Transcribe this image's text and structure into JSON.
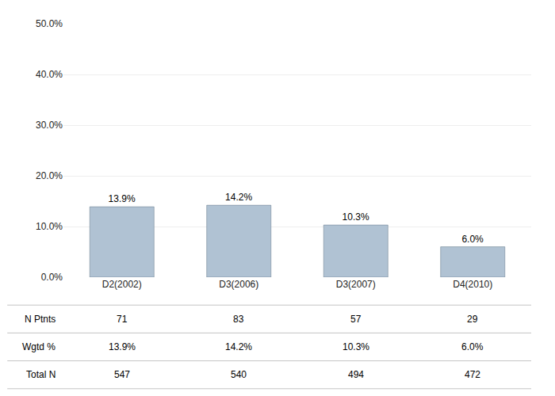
{
  "chart_data": [
    {
      "type": "bar",
      "categories": [
        "D2(2002)",
        "D3(2006)",
        "D3(2007)",
        "D4(2010)"
      ],
      "values": [
        13.9,
        14.2,
        10.3,
        6.0
      ],
      "value_labels": [
        "13.9%",
        "14.2%",
        "10.3%",
        "6.0%"
      ],
      "data_labels": true,
      "color": "#b0c2d3",
      "ylim": [
        0,
        50
      ],
      "yticks": [
        {
          "value": 0,
          "label": "0.0%"
        },
        {
          "value": 10,
          "label": "10.0%"
        },
        {
          "value": 20,
          "label": "20.0%"
        },
        {
          "value": 30,
          "label": "30.0%"
        },
        {
          "value": 40,
          "label": "40.0%"
        },
        {
          "value": 50,
          "label": "50.0%"
        }
      ],
      "grid": true
    },
    {
      "type": "table",
      "categories": [
        "D2(2002)",
        "D3(2006)",
        "D3(2007)",
        "D4(2010)"
      ],
      "series": [
        {
          "name": "N Ptnts",
          "values": [
            71,
            83,
            57,
            29
          ]
        },
        {
          "name": "Wgtd %",
          "values": [
            13.9,
            14.2,
            10.3,
            6.0
          ],
          "value_labels": [
            "13.9%",
            "14.2%",
            "10.3%",
            "6.0%"
          ]
        },
        {
          "name": "Total N",
          "values": [
            547,
            540,
            494,
            472
          ]
        }
      ]
    }
  ]
}
